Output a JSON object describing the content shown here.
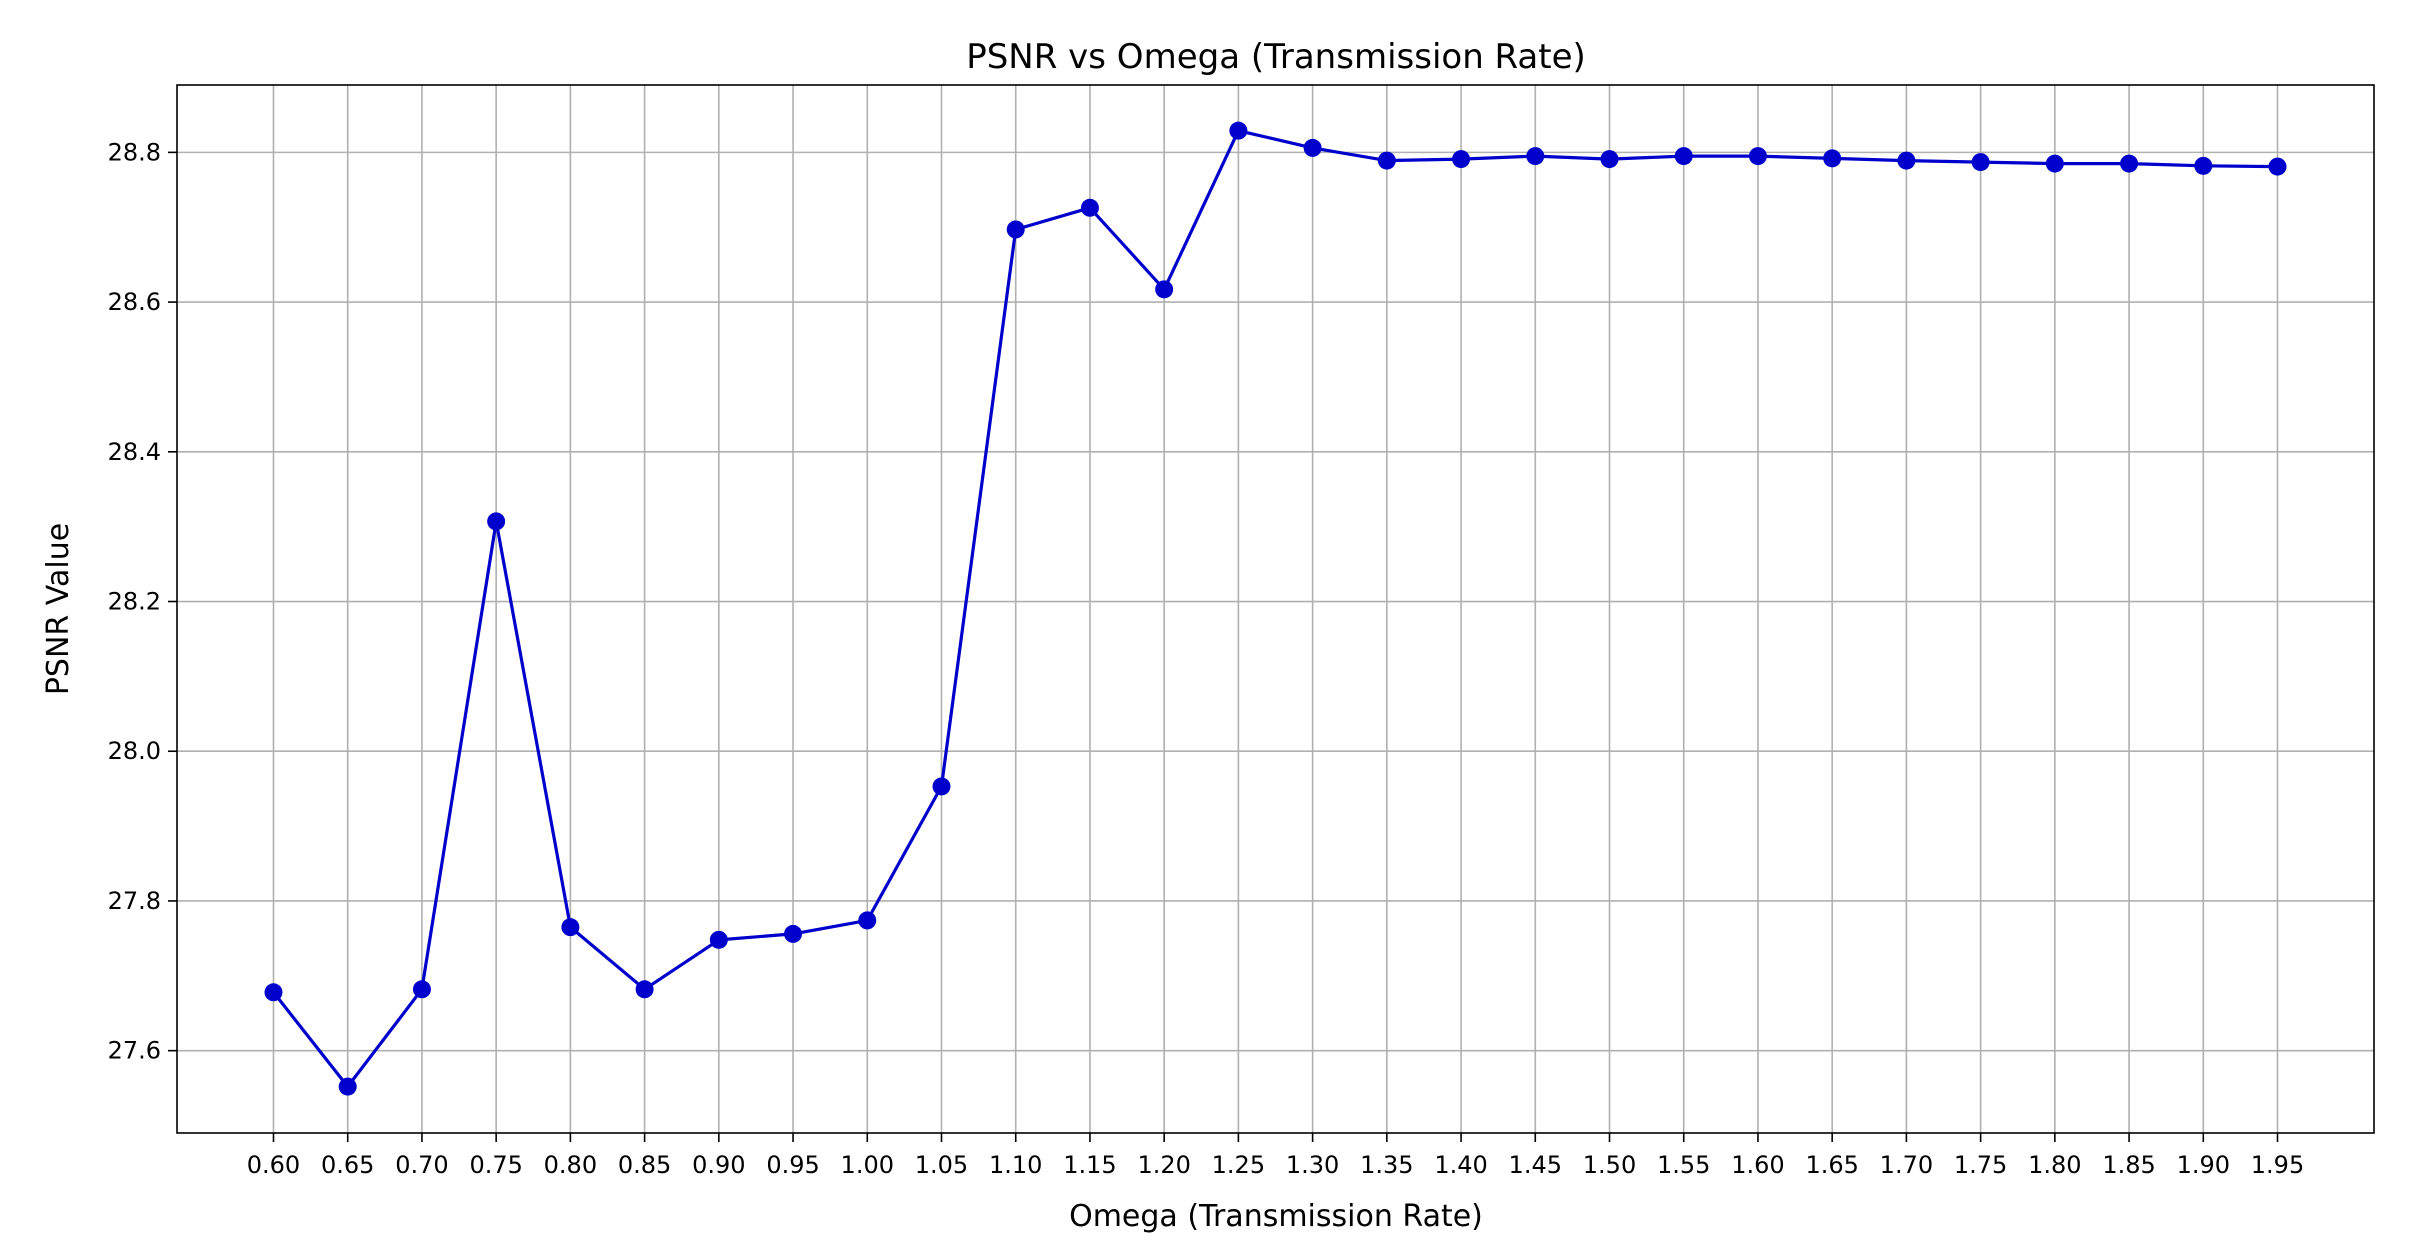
{
  "chart_data": {
    "type": "line",
    "title": "PSNR vs Omega (Transmission Rate)",
    "xlabel": "Omega (Transmission Rate)",
    "ylabel": "PSNR Value",
    "x": [
      0.6,
      0.65,
      0.7,
      0.75,
      0.8,
      0.85,
      0.9,
      0.95,
      1.0,
      1.05,
      1.1,
      1.15,
      1.2,
      1.25,
      1.3,
      1.35,
      1.4,
      1.45,
      1.5,
      1.55,
      1.6,
      1.65,
      1.7,
      1.75,
      1.8,
      1.85,
      1.9,
      1.95
    ],
    "x_tick_labels": [
      "0.60",
      "0.65",
      "0.70",
      "0.75",
      "0.80",
      "0.85",
      "0.90",
      "0.95",
      "1.00",
      "1.05",
      "1.10",
      "1.15",
      "1.20",
      "1.25",
      "1.30",
      "1.35",
      "1.40",
      "1.45",
      "1.50",
      "1.55",
      "1.60",
      "1.65",
      "1.70",
      "1.75",
      "1.80",
      "1.85",
      "1.90",
      "1.95"
    ],
    "y_ticks": [
      27.6,
      27.8,
      28.0,
      28.2,
      28.4,
      28.6,
      28.8
    ],
    "y_tick_labels": [
      "27.6",
      "27.8",
      "28.0",
      "28.2",
      "28.4",
      "28.6",
      "28.8"
    ],
    "xlim": [
      0.535,
      2.015
    ],
    "ylim": [
      27.49,
      28.89
    ],
    "grid": true,
    "series": [
      {
        "color": "#0000cc",
        "marker": "circle",
        "values": [
          27.678,
          27.552,
          27.682,
          28.307,
          27.765,
          27.682,
          27.748,
          27.756,
          27.774,
          27.953,
          28.697,
          28.726,
          28.617,
          28.829,
          28.806,
          28.789,
          28.791,
          28.795,
          28.791,
          28.795,
          28.795,
          28.792,
          28.789,
          28.787,
          28.785,
          28.785,
          28.782,
          28.781
        ]
      }
    ]
  }
}
